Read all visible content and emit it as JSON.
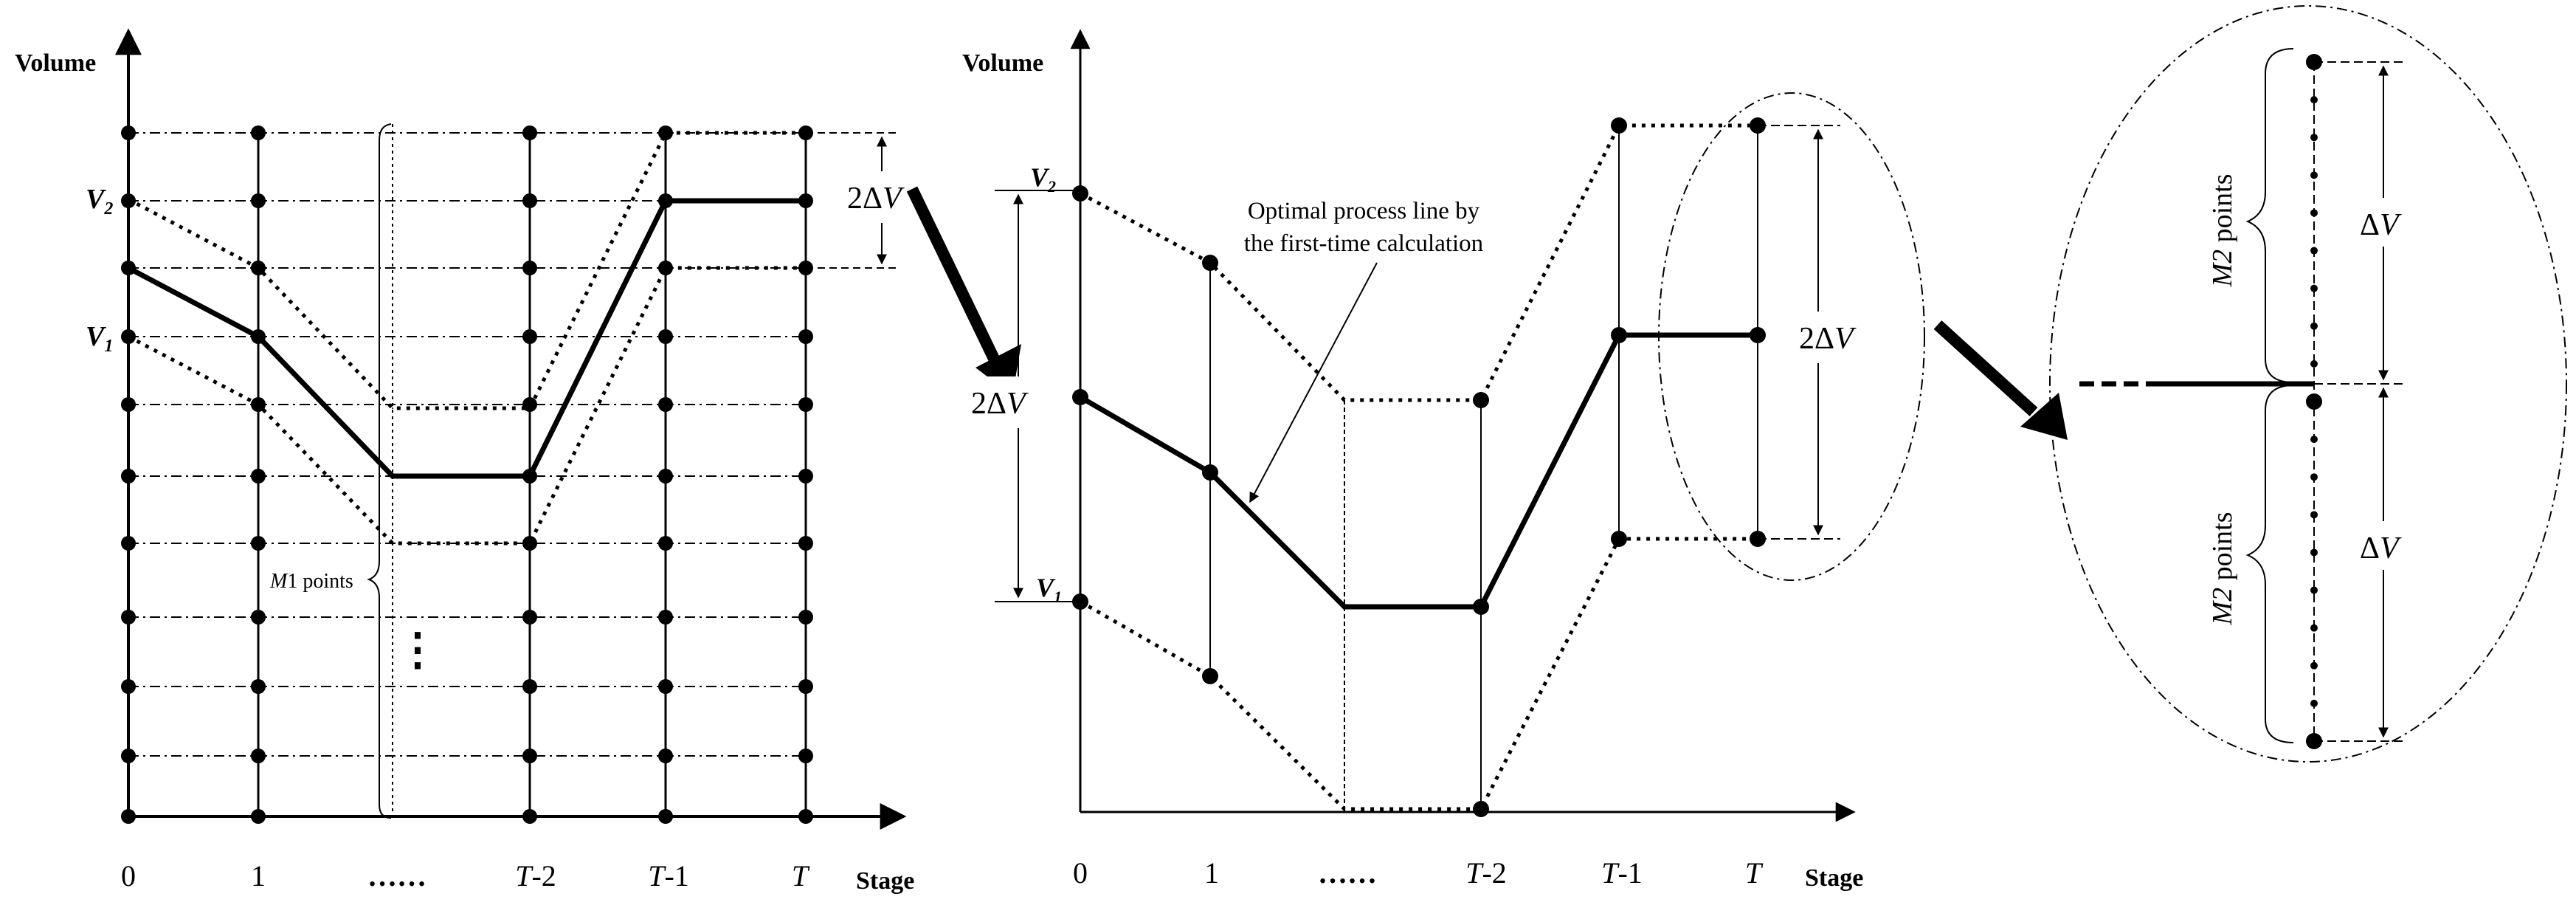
{
  "panel_left": {
    "y_axis_label": "Volume",
    "x_axis_label": "Stage",
    "stage_labels": [
      {
        "main": "0",
        "suffix": ""
      },
      {
        "main": "1",
        "suffix": ""
      },
      {
        "main": "……",
        "suffix": ""
      },
      {
        "main": "T",
        "suffix": "-2"
      },
      {
        "main": "T",
        "suffix": "-1"
      },
      {
        "main": "T",
        "suffix": ""
      }
    ],
    "v2_label": {
      "main": "V",
      "sub": "2"
    },
    "v1_label": {
      "main": "V",
      "sub": "1"
    },
    "bracket_label": {
      "italic": "M",
      "rest": "1 points"
    },
    "range_label": {
      "prefix": "2Δ",
      "italic": "V"
    },
    "ellipsis": "⋮"
  },
  "panel_middle": {
    "y_axis_label": "Volume",
    "x_axis_label": "Stage",
    "stage_labels": [
      {
        "main": "0",
        "suffix": ""
      },
      {
        "main": "1",
        "suffix": ""
      },
      {
        "main": "……",
        "suffix": ""
      },
      {
        "main": "T",
        "suffix": "-2"
      },
      {
        "main": "T",
        "suffix": "-1"
      },
      {
        "main": "T",
        "suffix": ""
      }
    ],
    "v2_label": {
      "main": "V",
      "sub": "2"
    },
    "v1_label": {
      "main": "V",
      "sub": "1"
    },
    "annotation_line1": "Optimal process line by",
    "annotation_line2": "the first-time calculation",
    "left_range_label": {
      "prefix": "2Δ",
      "italic": "V"
    },
    "right_range_label": {
      "prefix": "2Δ",
      "italic": "V"
    }
  },
  "panel_right": {
    "upper_points_label": {
      "italic": "M2",
      "rest": " points"
    },
    "lower_points_label": {
      "italic": "M2",
      "rest": " points"
    },
    "upper_delta_label": {
      "prefix": "Δ",
      "italic": "V"
    },
    "lower_delta_label": {
      "prefix": "Δ",
      "italic": "V"
    }
  }
}
